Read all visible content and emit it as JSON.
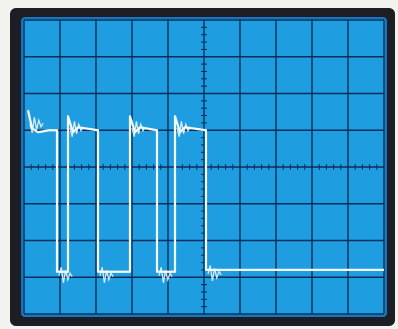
{
  "scope": {
    "colors": {
      "screen": "#1e9ee0",
      "screen_edge": "#1677c0",
      "graticule": "#0b2d5a",
      "trace": "#f4f8fb",
      "bezel": "#1c1e24",
      "background": "#f2f2ee"
    },
    "graticule": {
      "divisions_x": 10,
      "divisions_y": 8,
      "minor_ticks_per_division": 5
    },
    "trace": {
      "description_free": true,
      "pulses": 4,
      "high_level_div": 5.0,
      "low_level_div": 1.15,
      "final_level_div": 1.2
    }
  }
}
